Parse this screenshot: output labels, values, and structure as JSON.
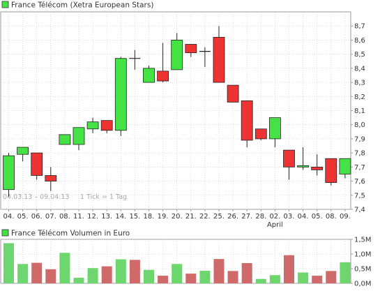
{
  "colors": {
    "up": "#44e244",
    "down": "#ee3333",
    "vol_up": "#6ed66e",
    "vol_down": "#d06a6a",
    "grid": "#c8c8c8",
    "frame": "#9a9a9a",
    "text": "#333333"
  },
  "chart_data": [
    {
      "type": "candlestick",
      "title": "France Télécom (Xetra European Stars)",
      "legend_marker": "square",
      "period_label": "04.03.13 – 09.04.13",
      "tick_label": "1 Tick = 1 Tag",
      "categories": [
        "04.",
        "05.",
        "06.",
        "07.",
        "08.",
        "11.",
        "12.",
        "13.",
        "14.",
        "15.",
        "18.",
        "19.",
        "20.",
        "21.",
        "22.",
        "25.",
        "26.",
        "27.",
        "28.",
        "02.",
        "03.",
        "04.",
        "05.",
        "08.",
        "09."
      ],
      "x_sublabels": [
        {
          "index": 19,
          "text": "April"
        }
      ],
      "ylim": [
        7.4,
        8.8
      ],
      "yticks": [
        7.4,
        7.5,
        7.6,
        7.7,
        7.8,
        7.9,
        8.0,
        8.1,
        8.2,
        8.3,
        8.4,
        8.5,
        8.6,
        8.7
      ],
      "ytick_labels": [
        "7,4",
        "7,5",
        "7,6",
        "7,7",
        "7,8",
        "7,9",
        "8,0",
        "8,1",
        "8,2",
        "8,3",
        "8,4",
        "8,5",
        "8,6",
        "8,7"
      ],
      "grid": true,
      "candles": [
        {
          "o": 7.54,
          "h": 7.8,
          "l": 7.49,
          "c": 7.78
        },
        {
          "o": 7.79,
          "h": 7.84,
          "l": 7.74,
          "c": 7.84
        },
        {
          "o": 7.8,
          "h": 7.8,
          "l": 7.61,
          "c": 7.64
        },
        {
          "o": 7.64,
          "h": 7.7,
          "l": 7.53,
          "c": 7.6
        },
        {
          "o": 7.86,
          "h": 7.93,
          "l": 7.86,
          "c": 7.93
        },
        {
          "o": 7.86,
          "h": 7.98,
          "l": 7.82,
          "c": 7.98
        },
        {
          "o": 7.97,
          "h": 8.05,
          "l": 7.94,
          "c": 8.02
        },
        {
          "o": 8.03,
          "h": 8.03,
          "l": 7.94,
          "c": 7.96
        },
        {
          "o": 7.96,
          "h": 8.48,
          "l": 7.92,
          "c": 8.47
        },
        {
          "o": 8.47,
          "h": 8.53,
          "l": 8.39,
          "c": 8.47
        },
        {
          "o": 8.3,
          "h": 8.42,
          "l": 8.3,
          "c": 8.4
        },
        {
          "o": 8.38,
          "h": 8.58,
          "l": 8.3,
          "c": 8.31
        },
        {
          "o": 8.39,
          "h": 8.65,
          "l": 8.39,
          "c": 8.6
        },
        {
          "o": 8.57,
          "h": 8.57,
          "l": 8.48,
          "c": 8.51
        },
        {
          "o": 8.52,
          "h": 8.55,
          "l": 8.41,
          "c": 8.52
        },
        {
          "o": 8.62,
          "h": 8.7,
          "l": 8.3,
          "c": 8.3
        },
        {
          "o": 8.28,
          "h": 8.28,
          "l": 8.16,
          "c": 8.16
        },
        {
          "o": 8.17,
          "h": 8.17,
          "l": 7.84,
          "c": 7.89
        },
        {
          "o": 7.97,
          "h": 7.97,
          "l": 7.89,
          "c": 7.9
        },
        {
          "o": 7.9,
          "h": 8.05,
          "l": 7.84,
          "c": 8.05
        },
        {
          "o": 7.82,
          "h": 7.82,
          "l": 7.61,
          "c": 7.7
        },
        {
          "o": 7.7,
          "h": 7.84,
          "l": 7.68,
          "c": 7.71
        },
        {
          "o": 7.7,
          "h": 7.79,
          "l": 7.64,
          "c": 7.68
        },
        {
          "o": 7.76,
          "h": 7.76,
          "l": 7.57,
          "c": 7.59
        },
        {
          "o": 7.65,
          "h": 7.76,
          "l": 7.62,
          "c": 7.76
        }
      ]
    },
    {
      "type": "bar",
      "title": "France Télécom Volumen in Euro",
      "legend_marker": "square",
      "ylim": [
        0,
        1.5
      ],
      "yticks": [
        0,
        0.5,
        1.0,
        1.5
      ],
      "ytick_labels": [
        "0,0M",
        "0,5M",
        "1,0M",
        "1,5M"
      ],
      "grid": true,
      "values": [
        1.37,
        0.66,
        0.7,
        0.48,
        1.04,
        0.19,
        0.52,
        0.58,
        0.82,
        0.8,
        0.46,
        0.26,
        0.66,
        0.33,
        0.43,
        0.83,
        0.42,
        0.69,
        0.15,
        0.28,
        0.96,
        0.37,
        0.26,
        0.42,
        0.72
      ],
      "directions": [
        "up",
        "up",
        "down",
        "down",
        "up",
        "up",
        "up",
        "down",
        "up",
        "down",
        "up",
        "down",
        "up",
        "down",
        "up",
        "down",
        "down",
        "down",
        "up",
        "up",
        "down",
        "up",
        "down",
        "down",
        "up"
      ]
    }
  ]
}
